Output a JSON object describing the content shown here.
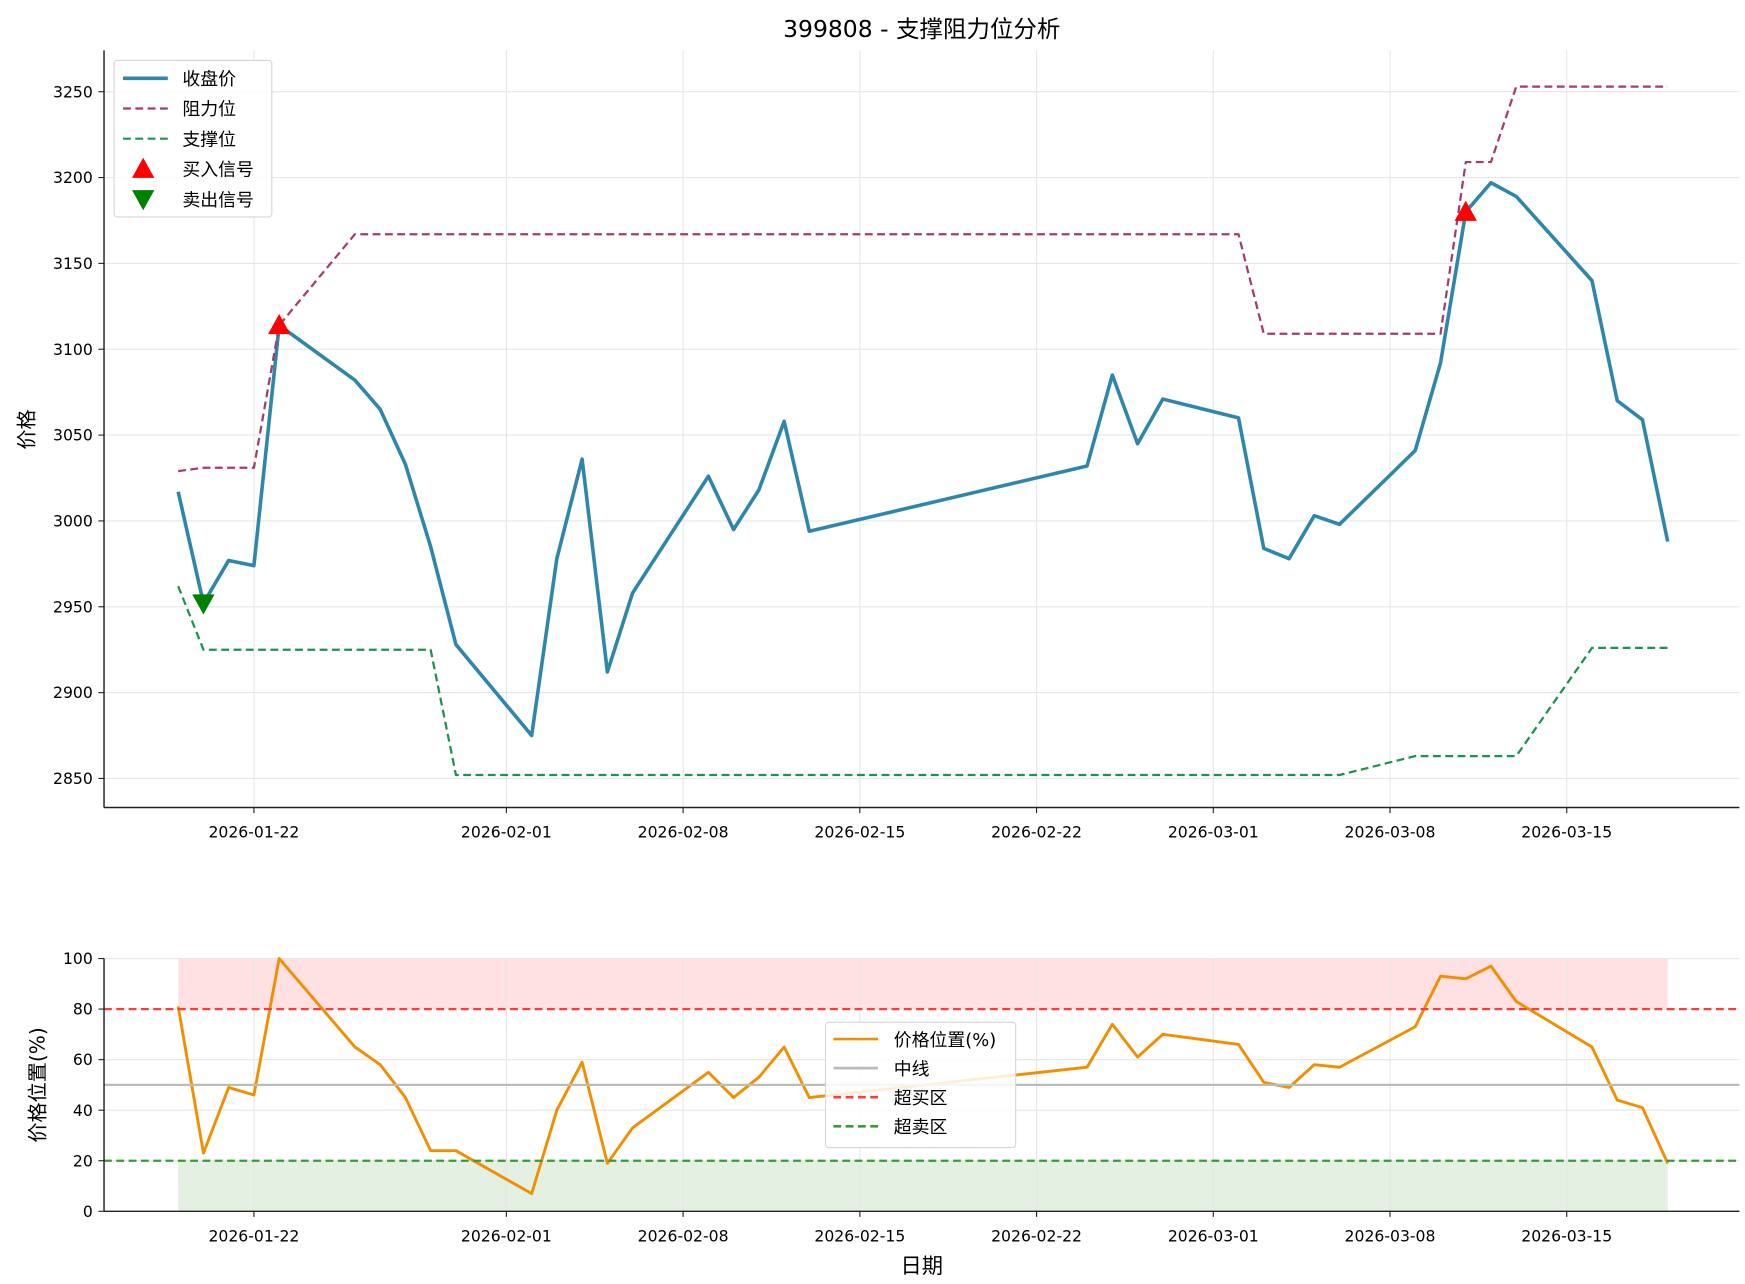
{
  "title": "399808 - 支撑阻力位分析",
  "chart_data": [
    {
      "type": "line",
      "panel": "top",
      "title": "399808 - 支撑阻力位分析",
      "xlabel": "",
      "ylabel": "价格",
      "ylim": [
        2832,
        3275
      ],
      "yticks": [
        2850,
        2900,
        2950,
        3000,
        3050,
        3100,
        3150,
        3200,
        3250
      ],
      "xticks": [
        "2026-01-22",
        "2026-02-01",
        "2026-02-08",
        "2026-02-15",
        "2026-02-22",
        "2026-03-01",
        "2026-03-08",
        "2026-03-15"
      ],
      "grid": true,
      "legend_position": "upper left",
      "x": [
        "2026-01-19",
        "2026-01-20",
        "2026-01-21",
        "2026-01-22",
        "2026-01-23",
        "2026-01-26",
        "2026-01-27",
        "2026-01-28",
        "2026-01-29",
        "2026-01-30",
        "2026-02-02",
        "2026-02-03",
        "2026-02-04",
        "2026-02-05",
        "2026-02-06",
        "2026-02-09",
        "2026-02-10",
        "2026-02-11",
        "2026-02-12",
        "2026-02-13",
        "2026-02-24",
        "2026-02-25",
        "2026-02-26",
        "2026-02-27",
        "2026-03-02",
        "2026-03-03",
        "2026-03-04",
        "2026-03-05",
        "2026-03-06",
        "2026-03-09",
        "2026-03-10",
        "2026-03-11",
        "2026-03-12",
        "2026-03-13",
        "2026-03-16",
        "2026-03-17",
        "2026-03-18",
        "2026-03-19"
      ],
      "series": [
        {
          "name": "收盘价",
          "style": "solid",
          "color": "#2e86ab",
          "values": [
            3017,
            2952,
            2977,
            2974,
            3114,
            3082,
            3065,
            3033,
            2985,
            2928,
            2875,
            2978,
            3036,
            2912,
            2958,
            3026,
            2995,
            3018,
            3058,
            2994,
            3032,
            3085,
            3045,
            3071,
            3060,
            2984,
            2978,
            3003,
            2998,
            3041,
            3092,
            3180,
            3197,
            3189,
            3140,
            3070,
            3059,
            2988
          ]
        },
        {
          "name": "阻力位",
          "style": "dashed",
          "color": "#a23b72",
          "values": [
            3029,
            3031,
            3031,
            3031,
            3114,
            3167,
            3167,
            3167,
            3167,
            3167,
            3167,
            3167,
            3167,
            3167,
            3167,
            3167,
            3167,
            3167,
            3167,
            3167,
            3167,
            3167,
            3167,
            3167,
            3167,
            3109,
            3109,
            3109,
            3109,
            3109,
            3109,
            3209,
            3209,
            3253,
            3253,
            3253,
            3253,
            3253
          ]
        },
        {
          "name": "支撑位",
          "style": "dashed",
          "color": "#1e9150",
          "values": [
            2962,
            2925,
            2925,
            2925,
            2925,
            2925,
            2925,
            2925,
            2925,
            2852,
            2852,
            2852,
            2852,
            2852,
            2852,
            2852,
            2852,
            2852,
            2852,
            2852,
            2852,
            2852,
            2852,
            2852,
            2852,
            2852,
            2852,
            2852,
            2852,
            2863,
            2863,
            2863,
            2863,
            2863,
            2926,
            2926,
            2926,
            2926
          ]
        }
      ],
      "markers": [
        {
          "name": "买入信号",
          "shape": "triangle-up",
          "color": "#ff0000",
          "points": [
            {
              "x": "2026-01-23",
              "y": 3114
            },
            {
              "x": "2026-03-11",
              "y": 3180
            }
          ]
        },
        {
          "name": "卖出信号",
          "shape": "triangle-down",
          "color": "#008000",
          "points": [
            {
              "x": "2026-01-20",
              "y": 2952
            }
          ]
        }
      ]
    },
    {
      "type": "line",
      "panel": "bottom",
      "title": "",
      "xlabel": "日期",
      "ylabel": "价格位置(%)",
      "ylim": [
        0,
        100
      ],
      "yticks": [
        0,
        20,
        40,
        60,
        80,
        100
      ],
      "xticks": [
        "2026-01-22",
        "2026-02-01",
        "2026-02-08",
        "2026-02-15",
        "2026-02-22",
        "2026-03-01",
        "2026-03-08",
        "2026-03-15"
      ],
      "grid": true,
      "legend_position": "center",
      "series": [
        {
          "name": "价格位置(%)",
          "style": "solid",
          "color": "#f18f01",
          "values": [
            81,
            23,
            49,
            46,
            100,
            65,
            58,
            45,
            24,
            24,
            7,
            40,
            59,
            19,
            33,
            55,
            45,
            53,
            65,
            45,
            57,
            74,
            61,
            70,
            66,
            51,
            49,
            58,
            57,
            73,
            93,
            92,
            97,
            83,
            65,
            44,
            41,
            19
          ]
        },
        {
          "name": "中线",
          "style": "solid",
          "color": "#bbbbbb",
          "y": 50
        },
        {
          "name": "超买区",
          "style": "dashed",
          "color": "#ff3b3b",
          "y": 80,
          "fill_range": [
            80,
            100
          ],
          "fill_color": "#ffe1e4"
        },
        {
          "name": "超卖区",
          "style": "dashed",
          "color": "#3a9a3a",
          "y": 20,
          "fill_range": [
            0,
            20
          ],
          "fill_color": "#e4f0e2"
        }
      ]
    }
  ],
  "legend_top": [
    {
      "label": "收盘价",
      "kind": "line",
      "color": "#2e86ab"
    },
    {
      "label": "阻力位",
      "kind": "dash",
      "color": "#a23b72"
    },
    {
      "label": "支撑位",
      "kind": "dash",
      "color": "#1e9150"
    },
    {
      "label": "买入信号",
      "kind": "tri-up",
      "color": "#ff0000"
    },
    {
      "label": "卖出信号",
      "kind": "tri-down",
      "color": "#008000"
    }
  ],
  "legend_bottom": [
    {
      "label": "价格位置(%)",
      "kind": "line",
      "color": "#f18f01"
    },
    {
      "label": "中线",
      "kind": "line",
      "color": "#bbbbbb"
    },
    {
      "label": "超买区",
      "kind": "dash",
      "color": "#ff3b3b"
    },
    {
      "label": "超卖区",
      "kind": "dash",
      "color": "#3a9a3a"
    }
  ]
}
